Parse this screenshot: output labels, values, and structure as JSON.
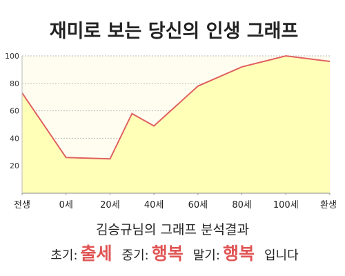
{
  "chart_data": {
    "type": "line",
    "title": "재미로 보는 당신의 인생 그래프",
    "x": [
      -20,
      0,
      10,
      20,
      30,
      40,
      60,
      80,
      100,
      120
    ],
    "series": [
      {
        "name": null,
        "color": "#e06060",
        "values": [
          73,
          26,
          25.5,
          25,
          58,
          49,
          78,
          92,
          100,
          96
        ]
      }
    ],
    "xlim": [
      -20,
      120
    ],
    "xticks": [
      {
        "value": -20,
        "label": "전생"
      },
      {
        "value": 0,
        "label": "0세"
      },
      {
        "value": 20,
        "label": "20세"
      },
      {
        "value": 40,
        "label": "40세"
      },
      {
        "value": 60,
        "label": "60세"
      },
      {
        "value": 80,
        "label": "80세"
      },
      {
        "value": 100,
        "label": "100세"
      },
      {
        "value": 120,
        "label": "환생"
      }
    ],
    "ylim": [
      0,
      100
    ],
    "yticks": [
      20,
      40,
      60,
      80,
      100
    ],
    "grid": true,
    "fill": "#ffffb8"
  },
  "result": {
    "heading": "김승규님의 그래프 분석결과",
    "items": [
      {
        "label": "초기:",
        "value": "출세"
      },
      {
        "label": "중기:",
        "value": "행복"
      },
      {
        "label": "말기:",
        "value": "행복"
      }
    ],
    "suffix": "입니다"
  }
}
